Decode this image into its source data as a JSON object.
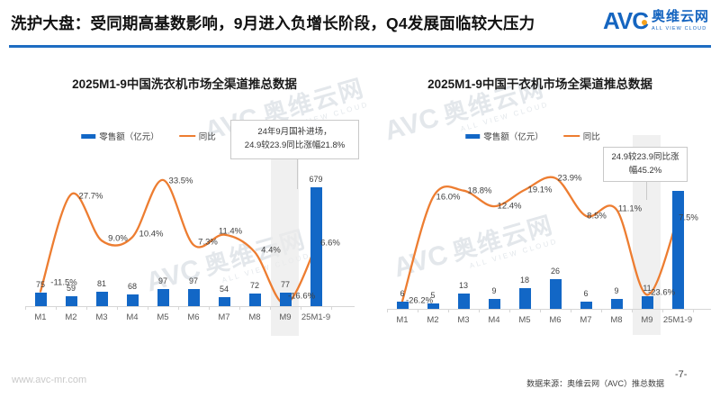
{
  "header": {
    "title": "洗护大盘：受同期高基数影响，9月进入负增长阶段，Q4发展面临较大压力",
    "logo": {
      "abbr": "AVC",
      "name_cn": "奥维云网",
      "name_en": "ALL VIEW CLOUD"
    }
  },
  "watermark": {
    "abbr": "AVC",
    "text": "奥维云网",
    "sub": "ALL VIEW CLOUD"
  },
  "colors": {
    "accent_blue": "#1E6DC2",
    "bar_blue": "#1267C6",
    "line_orange": "#ED7D31",
    "logo_blue": "#1565C0",
    "logo_orange": "#F6A21D"
  },
  "chart_data": [
    {
      "type": "bar+line",
      "title": "2025M1-9中国洗衣机市场全渠道推总数据",
      "categories": [
        "M1",
        "M2",
        "M3",
        "M4",
        "M5",
        "M6",
        "M7",
        "M8",
        "M9",
        "25M1-9"
      ],
      "series": [
        {
          "name": "零售额（亿元）",
          "type": "bar",
          "values": [
            75,
            59,
            81,
            68,
            97,
            97,
            54,
            72,
            77,
            679
          ],
          "labels": [
            "75",
            "59",
            "81",
            "68",
            "97",
            "97",
            "54",
            "72",
            "77",
            "679"
          ]
        },
        {
          "name": "同比",
          "type": "line",
          "values": [
            -11.5,
            27.7,
            9.0,
            10.4,
            33.5,
            7.3,
            11.4,
            4.4,
            -16.6,
            6.6
          ],
          "labels": [
            "-11.5%",
            "27.7%",
            "9.0%",
            "10.4%",
            "33.5%",
            "7.3%",
            "11.4%",
            "4.4%",
            "-16.6%",
            "6.6%"
          ]
        }
      ],
      "legend": [
        "零售额（亿元）",
        "同比"
      ],
      "highlight_category": "M9",
      "annotation_lines": [
        "24年9月国补进场，",
        "24.9较23.9同比涨幅21.8%"
      ],
      "grid": false,
      "legend_position": "top"
    },
    {
      "type": "bar+line",
      "title": "2025M1-9中国干衣机市场全渠道推总数据",
      "categories": [
        "M1",
        "M2",
        "M3",
        "M4",
        "M5",
        "M6",
        "M7",
        "M8",
        "M9",
        "25M1-9"
      ],
      "series": [
        {
          "name": "零售额（亿元）",
          "type": "bar",
          "values": [
            6,
            5,
            13,
            9,
            18,
            26,
            6,
            9,
            11,
            103
          ],
          "labels": [
            "6",
            "5",
            "13",
            "9",
            "18",
            "26",
            "6",
            "9",
            "11",
            ""
          ]
        },
        {
          "name": "同比",
          "type": "line",
          "values": [
            -26.2,
            16.0,
            18.8,
            12.4,
            19.1,
            23.9,
            8.5,
            11.1,
            -23.6,
            7.5
          ],
          "labels": [
            "-26.2%",
            "16.0%",
            "18.8%",
            "12.4%",
            "19.1%",
            "23.9%",
            "8.5%",
            "11.1%",
            "-23.6%",
            "7.5%"
          ]
        }
      ],
      "legend": [
        "零售额（亿元）",
        "同比"
      ],
      "highlight_category": "M9",
      "annotation_lines": [
        "24.9较23.9同比涨",
        "幅45.2%"
      ],
      "grid": false,
      "legend_position": "top"
    }
  ],
  "footer": {
    "website": "www.avc-mr.com",
    "source": "数据来源：奥维云网（AVC）推总数据",
    "page": "-7-"
  }
}
